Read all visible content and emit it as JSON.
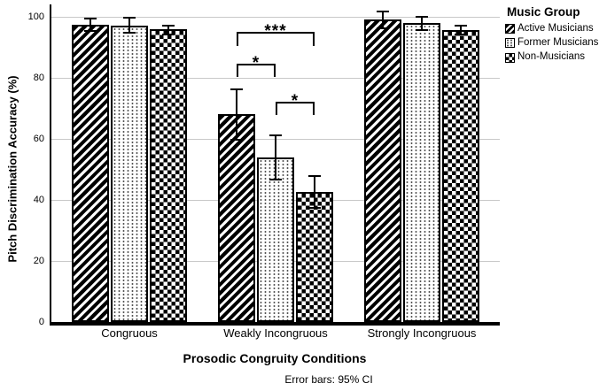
{
  "chart_data": {
    "type": "bar",
    "title": "",
    "xlabel": "Prosodic Congruity Conditions",
    "ylabel": "Pitch Discrimination Accuracy (%)",
    "caption": "Error bars: 95% CI",
    "categories": [
      "Congruous",
      "Weakly Incongruous",
      "Strongly Incongruous"
    ],
    "series": [
      {
        "name": "Active Musicians",
        "pattern": "diagonal-stripes",
        "values": [
          97.5,
          68,
          99
        ],
        "ci": [
          2.3,
          8.5,
          3
        ]
      },
      {
        "name": "Former Musicians",
        "pattern": "dots",
        "values": [
          97.2,
          54,
          98
        ],
        "ci": [
          2.8,
          7.5,
          2.5
        ]
      },
      {
        "name": "Non-Musicians",
        "pattern": "checkerboard",
        "values": [
          95.8,
          42.5,
          95.7
        ],
        "ci": [
          1.8,
          5.5,
          1.7
        ]
      }
    ],
    "ylim": [
      0,
      100
    ],
    "yticks": [
      0,
      20,
      40,
      60,
      80,
      100
    ],
    "grid": "horizontal",
    "gridline_color": "#c8c8c8",
    "bar_outline_color": "#000000",
    "background_color": "#ffffff",
    "legend_title": "Music Group",
    "legend_position": "top-right",
    "error_bars": "95% CI",
    "significance": [
      {
        "category": "Weakly Incongruous",
        "between": [
          "Active Musicians",
          "Non-Musicians"
        ],
        "label": "***"
      },
      {
        "category": "Weakly Incongruous",
        "between": [
          "Active Musicians",
          "Former Musicians"
        ],
        "label": "*"
      },
      {
        "category": "Weakly Incongruous",
        "between": [
          "Former Musicians",
          "Non-Musicians"
        ],
        "label": "*"
      }
    ]
  }
}
